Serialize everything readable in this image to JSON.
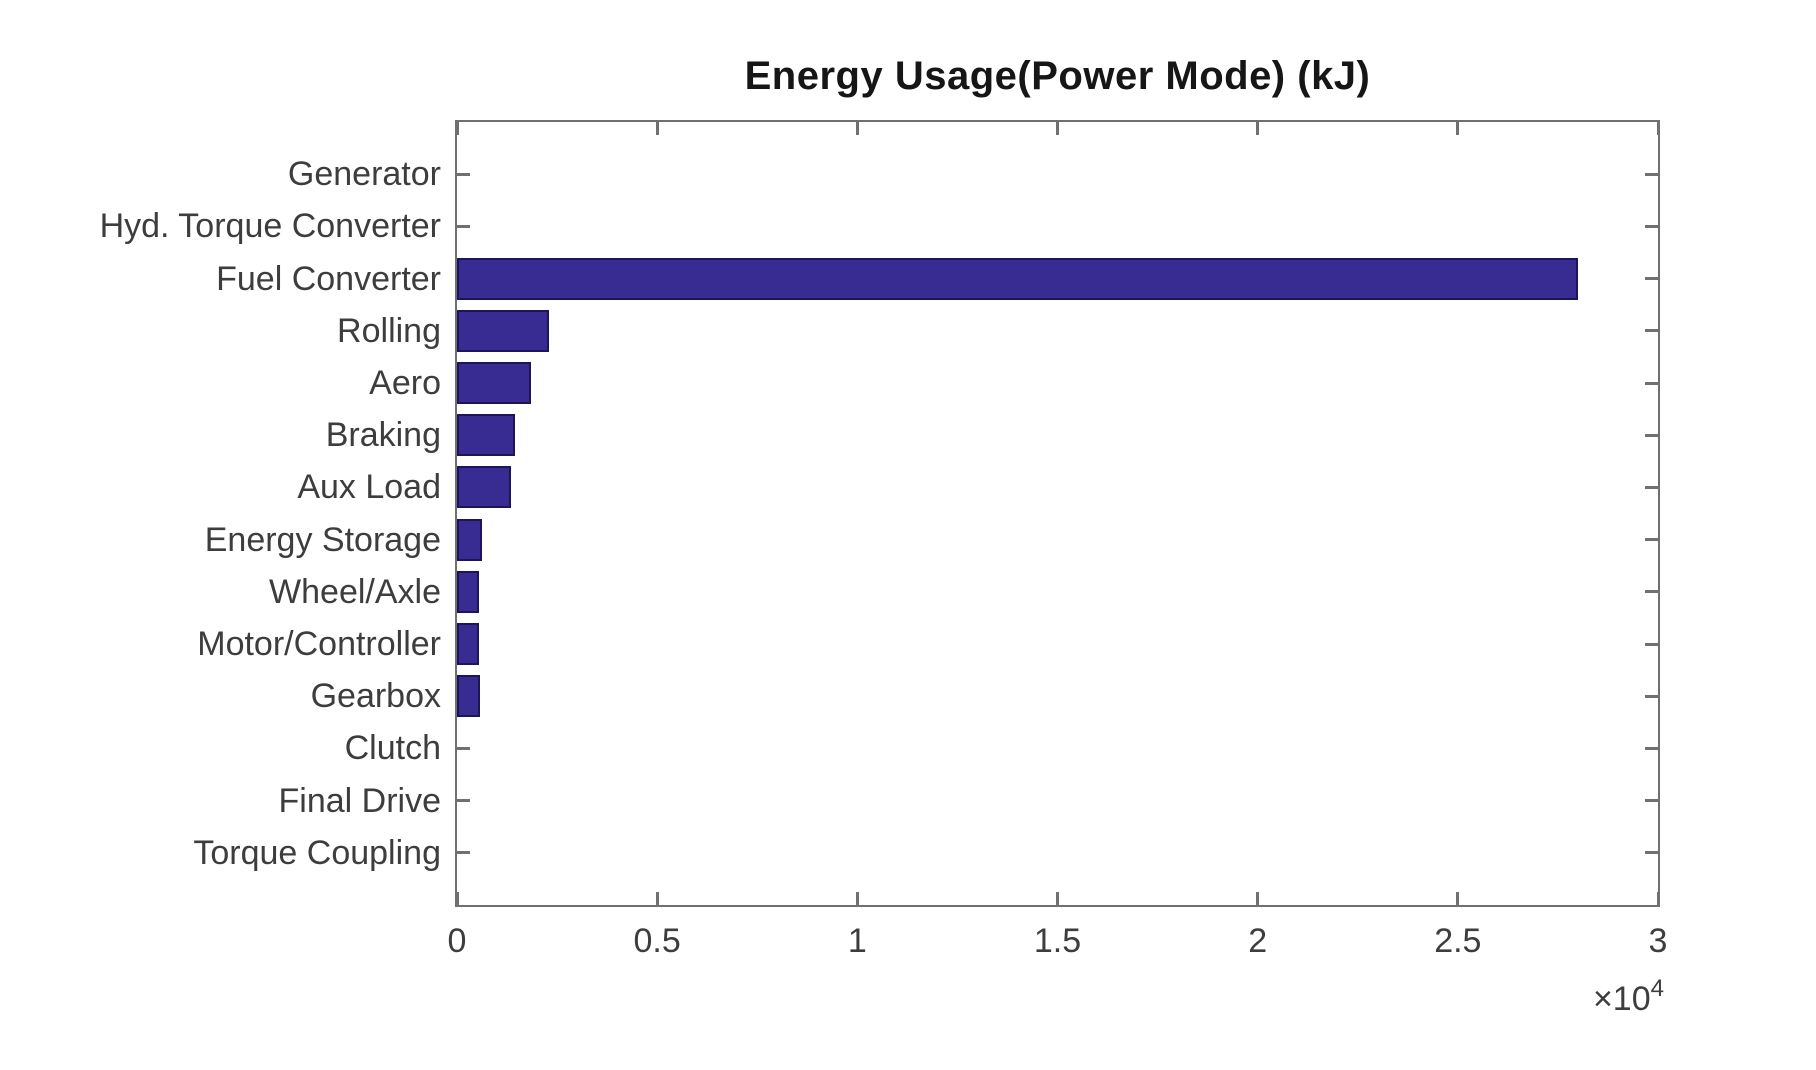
{
  "chart_data": {
    "type": "bar",
    "orientation": "horizontal",
    "title": "Energy Usage(Power Mode) (kJ)",
    "unit": "kJ",
    "categories": [
      "Generator",
      "Hyd. Torque Converter",
      "Fuel Converter",
      "Rolling",
      "Aero",
      "Braking",
      "Aux Load",
      "Energy Storage",
      "Wheel/Axle",
      "Motor/Controller",
      "Gearbox",
      "Clutch",
      "Final Drive",
      "Torque Coupling"
    ],
    "values": [
      0,
      0,
      28000,
      2300,
      1850,
      1450,
      1350,
      620,
      550,
      550,
      570,
      0,
      0,
      0
    ],
    "xlim": [
      0,
      30000
    ],
    "x_ticks": [
      0,
      5000,
      10000,
      15000,
      20000,
      25000,
      30000
    ],
    "x_tick_labels": [
      "0",
      "0.5",
      "1",
      "1.5",
      "2",
      "2.5",
      "3"
    ],
    "x_multiplier_base": "×10",
    "x_multiplier_exponent": "4",
    "grid": false,
    "legend": "none",
    "colors": {
      "bar_fill": "#382b92",
      "bar_edge": "#1d1558",
      "axis": "#707070",
      "tick_label": "#3d3d3d",
      "title": "#161616",
      "background": "#ffffff"
    }
  }
}
